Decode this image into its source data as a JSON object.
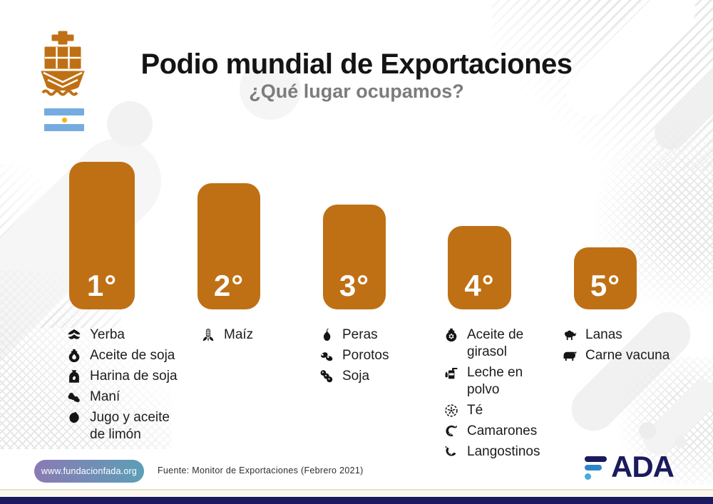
{
  "header": {
    "title": "Podio mundial de Exportaciones",
    "subtitle": "¿Qué lugar ocupamos?",
    "brandmark": {
      "ship_icon": "cargo-ship-icon",
      "flag_icon": "argentina-flag"
    }
  },
  "chart_data": {
    "type": "bar",
    "title": "Podio mundial de Exportaciones",
    "subtitle": "¿Qué lugar ocupamos?",
    "categories": [
      "1°",
      "2°",
      "3°",
      "4°",
      "5°"
    ],
    "values": [
      207,
      177,
      147,
      117,
      87
    ],
    "values_note": "bar heights in px; bars encode world-export podium rank (1st tallest), no numeric axis shown",
    "bar_color": "#bf7014",
    "label_color": "#ffffff",
    "grid": false,
    "legend": false,
    "annotations_per_category": [
      [
        "Yerba",
        "Aceite de soja",
        "Harina de soja",
        "Maní",
        "Jugo y aceite de limón"
      ],
      [
        "Maíz"
      ],
      [
        "Peras",
        "Porotos",
        "Soja"
      ],
      [
        "Aceite de girasol",
        "Leche en polvo",
        "Té",
        "Camarones",
        "Langostinos"
      ],
      [
        "Lanas",
        "Carne vacuna"
      ]
    ]
  },
  "podium": [
    {
      "rank": "1°",
      "products": [
        {
          "icon": "yerba-leaf-icon",
          "label": "Yerba"
        },
        {
          "icon": "oil-jug-icon",
          "label": "Aceite de soja"
        },
        {
          "icon": "flour-sack-icon",
          "label": "Harina de soja"
        },
        {
          "icon": "peanut-icon",
          "label": "Maní"
        },
        {
          "icon": "lemon-icon",
          "label": "Jugo y aceite\nde limón"
        }
      ]
    },
    {
      "rank": "2°",
      "products": [
        {
          "icon": "corn-icon",
          "label": "Maíz"
        }
      ]
    },
    {
      "rank": "3°",
      "products": [
        {
          "icon": "pear-icon",
          "label": "Peras"
        },
        {
          "icon": "beans-icon",
          "label": "Porotos"
        },
        {
          "icon": "soy-pod-icon",
          "label": "Soja"
        }
      ]
    },
    {
      "rank": "4°",
      "products": [
        {
          "icon": "sunflower-oil-icon",
          "label": "Aceite de\ngirasol"
        },
        {
          "icon": "milk-powder-icon",
          "label": "Leche en\npolvo"
        },
        {
          "icon": "tea-wreath-icon",
          "label": "Té"
        },
        {
          "icon": "shrimp-icon",
          "label": "Camarones"
        },
        {
          "icon": "prawn-icon",
          "label": "Langostinos"
        }
      ]
    },
    {
      "rank": "5°",
      "products": [
        {
          "icon": "sheep-icon",
          "label": "Lanas"
        },
        {
          "icon": "cow-icon",
          "label": "Carne vacuna"
        }
      ]
    }
  ],
  "footer": {
    "website": "www.fundacionfada.org",
    "source": "Fuente: Monitor de Exportaciones (Febrero 2021)",
    "brand": "FADA",
    "brand_letters": "ADA"
  },
  "colors": {
    "podium_orange": "#bf7014",
    "title_black": "#141414",
    "subtitle_gray": "#7c7c7c",
    "brand_navy": "#1b1a5e",
    "brand_blue": "#2e86c8",
    "brand_lightblue": "#45aadf",
    "pill_gradient_start": "#8a7ab5",
    "pill_gradient_end": "#5c9fb6",
    "flag_blue": "#74acdf",
    "flag_sun": "#f6b40e",
    "bottom_cream": "#fcf8eb"
  }
}
